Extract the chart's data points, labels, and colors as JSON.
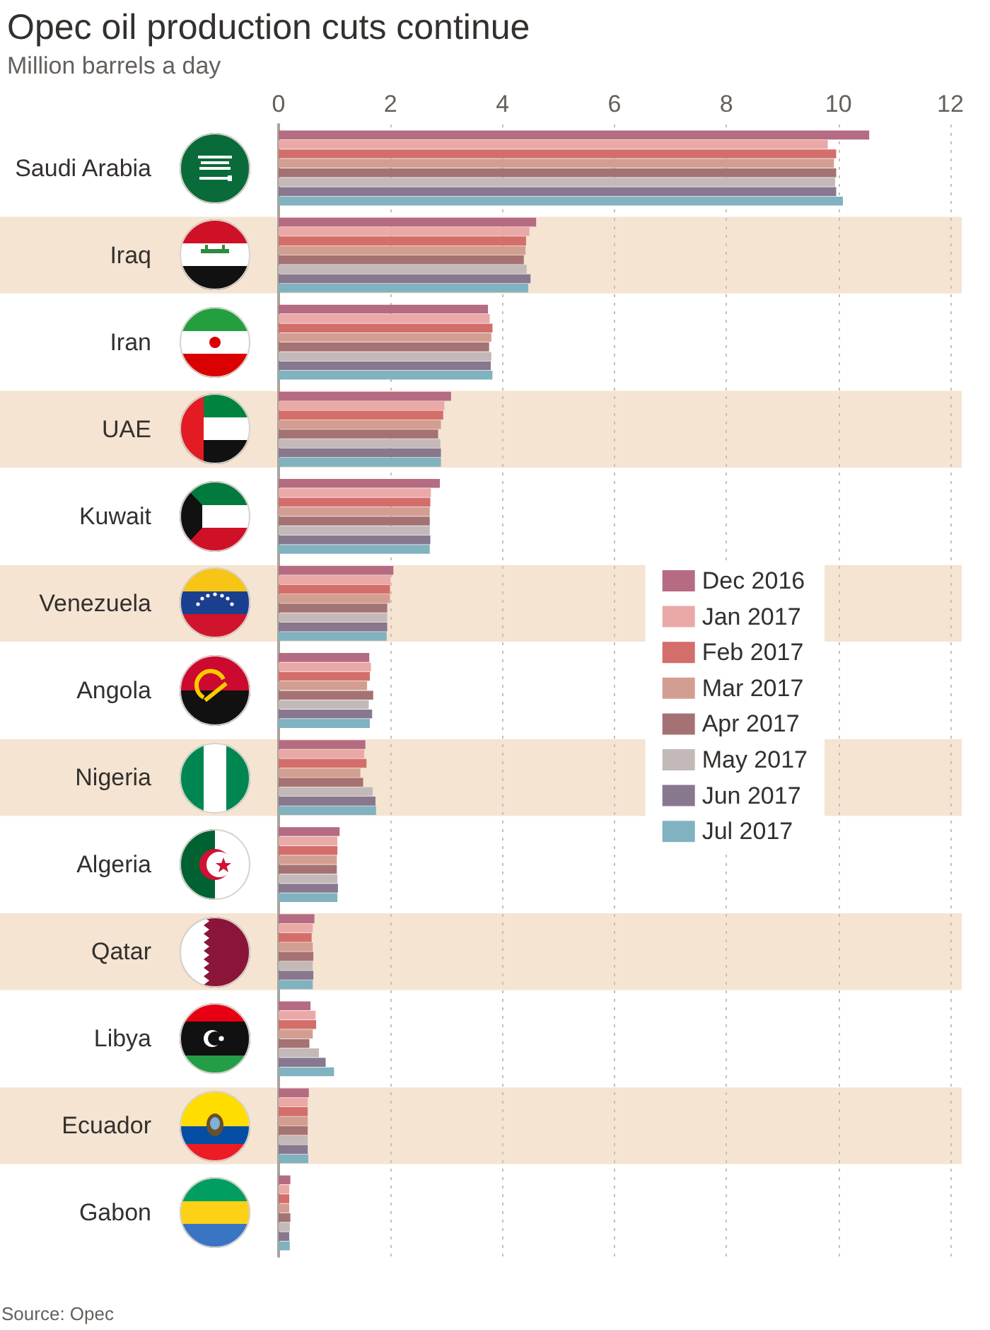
{
  "chart_data": {
    "type": "bar",
    "orientation": "horizontal",
    "title": "Opec oil production cuts continue",
    "subtitle": "Million barrels a day",
    "categories": [
      "Saudi Arabia",
      "Iraq",
      "Iran",
      "UAE",
      "Kuwait",
      "Venezuela",
      "Angola",
      "Nigeria",
      "Algeria",
      "Qatar",
      "Libya",
      "Ecuador",
      "Gabon"
    ],
    "series": [
      {
        "name": "Dec 2016",
        "color": "#b56b81",
        "values": [
          10.55,
          4.6,
          3.74,
          3.08,
          2.88,
          2.05,
          1.62,
          1.55,
          1.09,
          0.64,
          0.57,
          0.54,
          0.21
        ]
      },
      {
        "name": "Jan 2017",
        "color": "#eaa9a7",
        "values": [
          9.81,
          4.48,
          3.77,
          2.96,
          2.72,
          2.0,
          1.65,
          1.53,
          1.05,
          0.61,
          0.66,
          0.52,
          0.19
        ]
      },
      {
        "name": "Feb 2017",
        "color": "#d46e6b",
        "values": [
          9.96,
          4.42,
          3.82,
          2.94,
          2.71,
          1.99,
          1.63,
          1.57,
          1.05,
          0.59,
          0.67,
          0.52,
          0.19
        ]
      },
      {
        "name": "Mar 2017",
        "color": "#d39e92",
        "values": [
          9.92,
          4.41,
          3.8,
          2.9,
          2.7,
          1.99,
          1.58,
          1.46,
          1.04,
          0.61,
          0.61,
          0.52,
          0.19
        ]
      },
      {
        "name": "Apr 2017",
        "color": "#a57274",
        "values": [
          9.96,
          4.38,
          3.76,
          2.85,
          2.7,
          1.94,
          1.69,
          1.51,
          1.04,
          0.62,
          0.55,
          0.52,
          0.21
        ]
      },
      {
        "name": "May 2017",
        "color": "#c3b9b9",
        "values": [
          9.94,
          4.43,
          3.8,
          2.89,
          2.7,
          1.94,
          1.61,
          1.68,
          1.05,
          0.61,
          0.72,
          0.52,
          0.2
        ]
      },
      {
        "name": "Jun 2017",
        "color": "#877890",
        "values": [
          9.96,
          4.5,
          3.79,
          2.9,
          2.71,
          1.94,
          1.67,
          1.73,
          1.06,
          0.62,
          0.84,
          0.52,
          0.19
        ]
      },
      {
        "name": "Jul 2017",
        "color": "#80b2c0",
        "values": [
          10.08,
          4.46,
          3.82,
          2.9,
          2.7,
          1.93,
          1.63,
          1.74,
          1.05,
          0.61,
          0.99,
          0.53,
          0.2
        ]
      }
    ],
    "xlim": [
      0,
      12
    ],
    "xticks": [
      0,
      2,
      4,
      6,
      8,
      10,
      12
    ],
    "grid": "x",
    "legend": "right",
    "bands": [
      {
        "axis": "y",
        "from": "Iraq",
        "to": "Iraq",
        "color": "#f5e4d2"
      },
      {
        "axis": "y",
        "from": "UAE",
        "to": "UAE",
        "color": "#f5e4d2"
      },
      {
        "axis": "y",
        "from": "Venezuela",
        "to": "Venezuela",
        "color": "#f5e4d2"
      },
      {
        "axis": "y",
        "from": "Nigeria",
        "to": "Nigeria",
        "color": "#f5e4d2"
      },
      {
        "axis": "y",
        "from": "Qatar",
        "to": "Qatar",
        "color": "#f5e4d2"
      },
      {
        "axis": "y",
        "from": "Ecuador",
        "to": "Ecuador",
        "color": "#f5e4d2"
      }
    ],
    "annotations": [
      "Source: Opec"
    ]
  }
}
